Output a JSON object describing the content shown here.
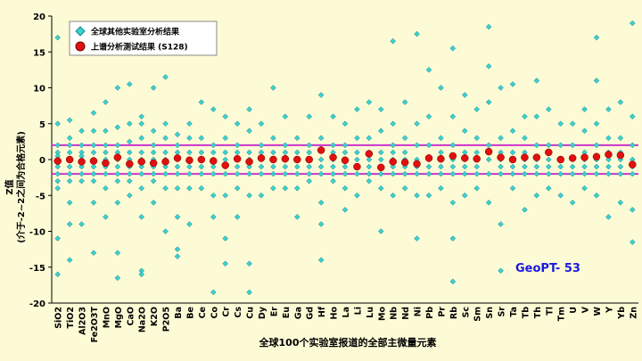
{
  "chart_data": {
    "type": "category_scatter",
    "categories": [
      "SiO2",
      "TiO2",
      "Al2O3",
      "Fe2O3T",
      "MnO",
      "MgO",
      "CaO",
      "Na2O",
      "K2O",
      "P2O5",
      "Ba",
      "Be",
      "Ce",
      "Co",
      "Cr",
      "Cs",
      "Cu",
      "Dy",
      "Er",
      "Eu",
      "Ga",
      "Gd",
      "Hf",
      "Ho",
      "La",
      "Li",
      "Lu",
      "Mo",
      "Nb",
      "Nd",
      "Ni",
      "Pb",
      "Pr",
      "Rb",
      "Sc",
      "Sm",
      "Sn",
      "Sr",
      "Ta",
      "Tb",
      "Th",
      "Tl",
      "Tm",
      "U",
      "V",
      "W",
      "Y",
      "Yb",
      "Zn"
    ],
    "series": [
      {
        "name": "全球其他实验室分析结果",
        "color": "#3cd0d0",
        "marker": "diamond",
        "values": [
          [
            17,
            5,
            2,
            1,
            0.5,
            0,
            -0.5,
            -1,
            -2,
            -3,
            -4,
            -11,
            -16
          ],
          [
            5.5,
            3,
            2,
            1,
            0,
            -1,
            -2,
            -3,
            -6,
            -9,
            -14
          ],
          [
            4,
            2,
            1,
            0.5,
            0,
            -0.5,
            -1,
            -2,
            -3,
            -9
          ],
          [
            6.5,
            4,
            2,
            1,
            0,
            -1,
            -2,
            -3,
            -6,
            -13
          ],
          [
            8,
            4,
            2,
            1,
            0,
            -0.5,
            -1,
            -2,
            -4,
            -8
          ],
          [
            10,
            4.5,
            2,
            1,
            0,
            -1,
            -2,
            -3,
            -6,
            -13,
            -16.5
          ],
          [
            10.5,
            5,
            2.5,
            1,
            0,
            -1,
            -2,
            -3,
            -5
          ],
          [
            6,
            5,
            3,
            1,
            0,
            -1,
            -2,
            -4,
            -8,
            -15.5,
            -16
          ],
          [
            10,
            4,
            2,
            1,
            0,
            -1,
            -2,
            -3,
            -6
          ],
          [
            11.5,
            5,
            3,
            1,
            0,
            -1,
            -2,
            -4,
            -10
          ],
          [
            3.5,
            2,
            1,
            0,
            -1,
            -2,
            -4,
            -8,
            -12.5,
            -13.5
          ],
          [
            5,
            3,
            1,
            0,
            -1,
            -2,
            -4,
            -9
          ],
          [
            8,
            3,
            1,
            0,
            -1,
            -2,
            -4
          ],
          [
            7,
            2,
            1,
            0,
            -1,
            -2,
            -5,
            -8,
            -18.5
          ],
          [
            6,
            3,
            1,
            0,
            -1,
            -2,
            -5,
            -11,
            -14.5
          ],
          [
            5,
            2,
            1,
            0,
            -1,
            -2,
            -4,
            -8
          ],
          [
            7,
            4,
            1,
            0,
            -1,
            -2,
            -5,
            -14.5,
            -18.5
          ],
          [
            5,
            2,
            1,
            0,
            -1,
            -2,
            -5
          ],
          [
            10,
            3,
            1,
            0,
            -1,
            -2,
            -4
          ],
          [
            6,
            2,
            1,
            0,
            -1,
            -2,
            -4
          ],
          [
            3,
            1,
            0,
            -1,
            -2,
            -4,
            -8
          ],
          [
            6,
            2,
            1,
            0,
            -1,
            -2,
            -3
          ],
          [
            9,
            3,
            1.5,
            0,
            -1,
            -2,
            -6,
            -9,
            -14
          ],
          [
            6,
            2,
            1,
            0,
            -1,
            -2,
            -3
          ],
          [
            5,
            2,
            1,
            0,
            -1,
            -2,
            -4,
            -7
          ],
          [
            7,
            3,
            1,
            0,
            -1,
            -2,
            -5
          ],
          [
            8,
            3,
            1,
            0,
            -1,
            -2,
            -3
          ],
          [
            7,
            4,
            1,
            0,
            -1,
            -2,
            -4,
            -10
          ],
          [
            16.5,
            5,
            2,
            1,
            0,
            -1,
            -2,
            -5
          ],
          [
            8,
            3,
            1,
            0,
            -1,
            -2,
            -4
          ],
          [
            17.5,
            5,
            2,
            0,
            -1,
            -2,
            -5,
            -11
          ],
          [
            12.5,
            6,
            2,
            0,
            -1,
            -2,
            -5
          ],
          [
            10,
            3,
            1,
            0,
            -1,
            -2,
            -4
          ],
          [
            15.5,
            6,
            2,
            0,
            -1,
            -2,
            -6,
            -11,
            -17
          ],
          [
            9,
            4,
            1,
            0,
            -1,
            -2,
            -5
          ],
          [
            7,
            3,
            1,
            0,
            -1,
            -2,
            -4
          ],
          [
            18.5,
            13,
            8,
            2,
            0,
            -2,
            -6
          ],
          [
            10,
            3,
            1,
            0,
            -1,
            -2,
            -9,
            -15.5
          ],
          [
            10.5,
            4,
            1,
            0,
            -1,
            -2,
            -4
          ],
          [
            6,
            3,
            1,
            0,
            -1,
            -2,
            -7
          ],
          [
            11,
            6,
            2,
            0,
            -1,
            -2,
            -5
          ],
          [
            7,
            2,
            0,
            -1,
            -2,
            -4
          ],
          [
            5,
            2,
            0,
            -1,
            -2,
            -5
          ],
          [
            5,
            2,
            0,
            -1,
            -2,
            -6
          ],
          [
            7,
            4,
            1,
            0,
            -1,
            -2,
            -4
          ],
          [
            17,
            11,
            5,
            2,
            0,
            -1,
            -2,
            -5
          ],
          [
            7,
            3,
            1,
            0,
            -1,
            -2,
            -8
          ],
          [
            8,
            3,
            1,
            0,
            -1,
            -2,
            -6
          ],
          [
            19,
            6,
            2,
            0,
            -1,
            -2,
            -7,
            -11.5
          ]
        ]
      },
      {
        "name": "上谱分析测试结果 (S128)",
        "color": "#e01010",
        "marker": "circle",
        "values": [
          -0.2,
          0,
          -0.3,
          -0.2,
          -0.5,
          0.3,
          -0.6,
          -0.3,
          -0.5,
          -0.3,
          0.2,
          -0.1,
          0,
          -0.2,
          -0.8,
          0.1,
          -0.3,
          0.2,
          0,
          0.1,
          0,
          0,
          1.3,
          0.3,
          -0.1,
          -1,
          0.8,
          -1.1,
          -0.3,
          -0.4,
          -0.6,
          0.2,
          0.1,
          0.5,
          0.2,
          0.1,
          1.1,
          0.3,
          0,
          0.3,
          0.3,
          1,
          0,
          0.2,
          0.3,
          0.4,
          0.7,
          0.6,
          -0.7
        ]
      }
    ],
    "limits": [
      -2,
      2
    ],
    "limit_color": "#cc33cc",
    "ylim": [
      -20,
      20
    ],
    "yticks": [
      -20,
      -15,
      -10,
      -5,
      0,
      5,
      10,
      15,
      20
    ],
    "y_label": [
      "Z值",
      "(介于-2~2之间为合格元素)"
    ],
    "x_label": "全球100个实验室报道的全部主微量元素",
    "annotation": "GeoPT- 53",
    "annotation_color": "#1a1adf",
    "legend": "upper left"
  }
}
